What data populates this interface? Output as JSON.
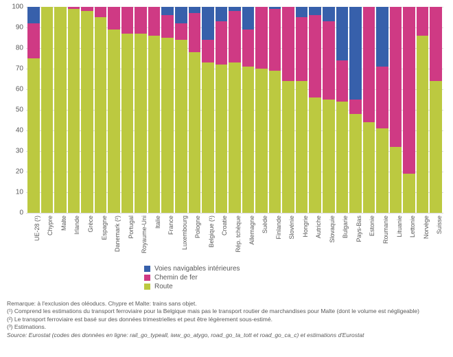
{
  "chart": {
    "type": "stacked-bar",
    "ylim": [
      0,
      100
    ],
    "ytick_step": 10,
    "yticks": [
      0,
      10,
      20,
      30,
      40,
      50,
      60,
      70,
      80,
      90,
      100
    ],
    "background_color": "#ffffff",
    "grid_color": "#d9d9d9",
    "axis_font_size": 10,
    "x_font_size": 9,
    "colors": {
      "waterway": "#3760ab",
      "rail": "#cf3a84",
      "road": "#bcc940"
    },
    "series_order": [
      "road",
      "rail",
      "waterway"
    ],
    "categories": [
      {
        "label": "UE-28 (¹)",
        "road": 75,
        "rail": 17,
        "waterway": 8
      },
      {
        "label": "Chypre",
        "road": 100,
        "rail": 0,
        "waterway": 0
      },
      {
        "label": "Malte",
        "road": 100,
        "rail": 0,
        "waterway": 0
      },
      {
        "label": "Irlande",
        "road": 99,
        "rail": 1,
        "waterway": 0
      },
      {
        "label": "Grèce",
        "road": 98,
        "rail": 2,
        "waterway": 0
      },
      {
        "label": "Espagne",
        "road": 95,
        "rail": 5,
        "waterway": 0
      },
      {
        "label": "Danemark (²)",
        "road": 89,
        "rail": 11,
        "waterway": 0
      },
      {
        "label": "Portugal",
        "road": 87,
        "rail": 13,
        "waterway": 0
      },
      {
        "label": "Royaume-Uni",
        "road": 87,
        "rail": 13,
        "waterway": 0
      },
      {
        "label": "Italie",
        "road": 86,
        "rail": 14,
        "waterway": 0
      },
      {
        "label": "France",
        "road": 85,
        "rail": 11,
        "waterway": 4
      },
      {
        "label": "Luxembourg",
        "road": 84,
        "rail": 8,
        "waterway": 8
      },
      {
        "label": "Pologne",
        "road": 78,
        "rail": 19,
        "waterway": 3
      },
      {
        "label": "Belgique (¹)",
        "road": 73,
        "rail": 11,
        "waterway": 16
      },
      {
        "label": "Croatie",
        "road": 72,
        "rail": 21,
        "waterway": 7
      },
      {
        "label": "Rép. tchèque",
        "road": 73,
        "rail": 25,
        "waterway": 2
      },
      {
        "label": "Allemagne",
        "road": 71,
        "rail": 18,
        "waterway": 11
      },
      {
        "label": "Suède",
        "road": 70,
        "rail": 30,
        "waterway": 0
      },
      {
        "label": "Finlande",
        "road": 69,
        "rail": 30,
        "waterway": 1
      },
      {
        "label": "Slovénie",
        "road": 64,
        "rail": 36,
        "waterway": 0
      },
      {
        "label": "Hongrie",
        "road": 64,
        "rail": 31,
        "waterway": 5
      },
      {
        "label": "Autriche",
        "road": 56,
        "rail": 40,
        "waterway": 4
      },
      {
        "label": "Slovaquie",
        "road": 55,
        "rail": 38,
        "waterway": 7
      },
      {
        "label": "Bulgarie",
        "road": 54,
        "rail": 20,
        "waterway": 26
      },
      {
        "label": "Pays-Bas",
        "road": 48,
        "rail": 7,
        "waterway": 45
      },
      {
        "label": "Estonie",
        "road": 44,
        "rail": 56,
        "waterway": 0
      },
      {
        "label": "Roumanie",
        "road": 41,
        "rail": 30,
        "waterway": 29
      },
      {
        "label": "Lituanie",
        "road": 32,
        "rail": 68,
        "waterway": 0
      },
      {
        "label": "Lettonie",
        "road": 19,
        "rail": 81,
        "waterway": 0
      },
      {
        "label": "Norvège",
        "road": 86,
        "rail": 14,
        "waterway": 0
      },
      {
        "label": "Suisse",
        "road": 64,
        "rail": 36,
        "waterway": 0
      }
    ]
  },
  "legend": {
    "items": [
      {
        "key": "waterway",
        "label": "Voies navigables intérieures"
      },
      {
        "key": "rail",
        "label": "Chemin de fer"
      },
      {
        "key": "road",
        "label": "Route"
      }
    ]
  },
  "notes": {
    "l1": "Remarque: à l'exclusion des oléoducs. Chypre et Malte: trains sans objet.",
    "l2": "(¹) Comprend les estimations du transport ferroviaire pour la Belgique mais pas le transport routier de marchandises pour Malte (dont le volume est négligeable)",
    "l3": "(²) Le transport ferroviaire est basé sur des données trimestrielles et peut être légèrement sous-estimé.",
    "l4": "(³) Estimations.",
    "l5": "Source: Eurostat (codes des données en ligne: rail_go_typeall, iww_go_atygo, road_go_ta_tott et road_go_ca_c) et estimations d'Eurostat"
  }
}
